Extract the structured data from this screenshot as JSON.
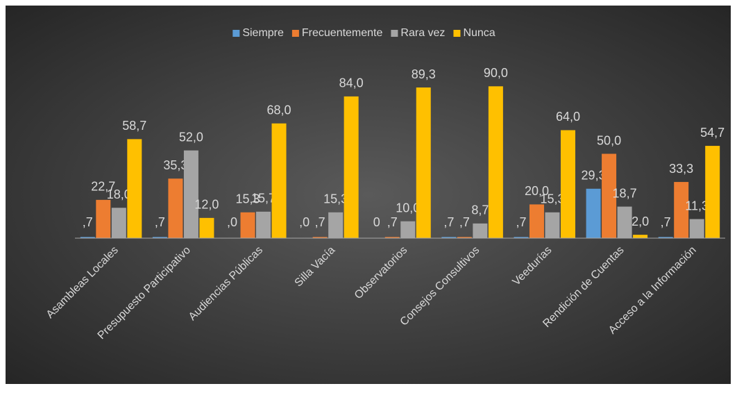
{
  "chart_data": {
    "type": "bar",
    "categories": [
      "Asambleas Locales",
      "Presupuesto Participativo",
      "Audiencias Públicas",
      "Silla Vacía",
      "Observatorios",
      "Consejos Consultivos",
      "Veedurías",
      "Rendición de Cuentas",
      "Acceso a la Información"
    ],
    "series": [
      {
        "name": "Siempre",
        "color": "#5b9bd5",
        "values": [
          0.7,
          0.7,
          0,
          0,
          0,
          0.7,
          0.7,
          29.3,
          0.7
        ],
        "value_labels": [
          ",7",
          ",7",
          ",0",
          ",0",
          "0",
          ",7",
          ",7",
          "29,3",
          ",7"
        ]
      },
      {
        "name": "Frecuentemente",
        "color": "#ed7d31",
        "values": [
          22.7,
          35.3,
          15.3,
          0.7,
          0.7,
          0.7,
          20.0,
          50.0,
          33.3
        ],
        "value_labels": [
          "22,7",
          "35,3",
          "15,3",
          ",7",
          ",7",
          ",7",
          "20,0",
          "50,0",
          "33,3"
        ]
      },
      {
        "name": "Rara vez",
        "color": "#a5a5a5",
        "values": [
          18.0,
          52.0,
          15.7,
          15.3,
          10.0,
          8.7,
          15.3,
          18.7,
          11.3
        ],
        "value_labels": [
          "18,0",
          "52,0",
          "15,7",
          "15,3",
          "10,0",
          "8,7",
          "15,3",
          "18,7",
          "11,3"
        ]
      },
      {
        "name": "Nunca",
        "color": "#ffc000",
        "values": [
          58.7,
          12.0,
          68.0,
          84.0,
          89.3,
          90.0,
          64.0,
          2.0,
          54.7
        ],
        "value_labels": [
          "58,7",
          "12,0",
          "68,0",
          "84,0",
          "89,3",
          "90,0",
          "64,0",
          "2,0",
          "54,7"
        ]
      }
    ],
    "ylim": [
      0,
      100
    ],
    "legend": "top"
  }
}
